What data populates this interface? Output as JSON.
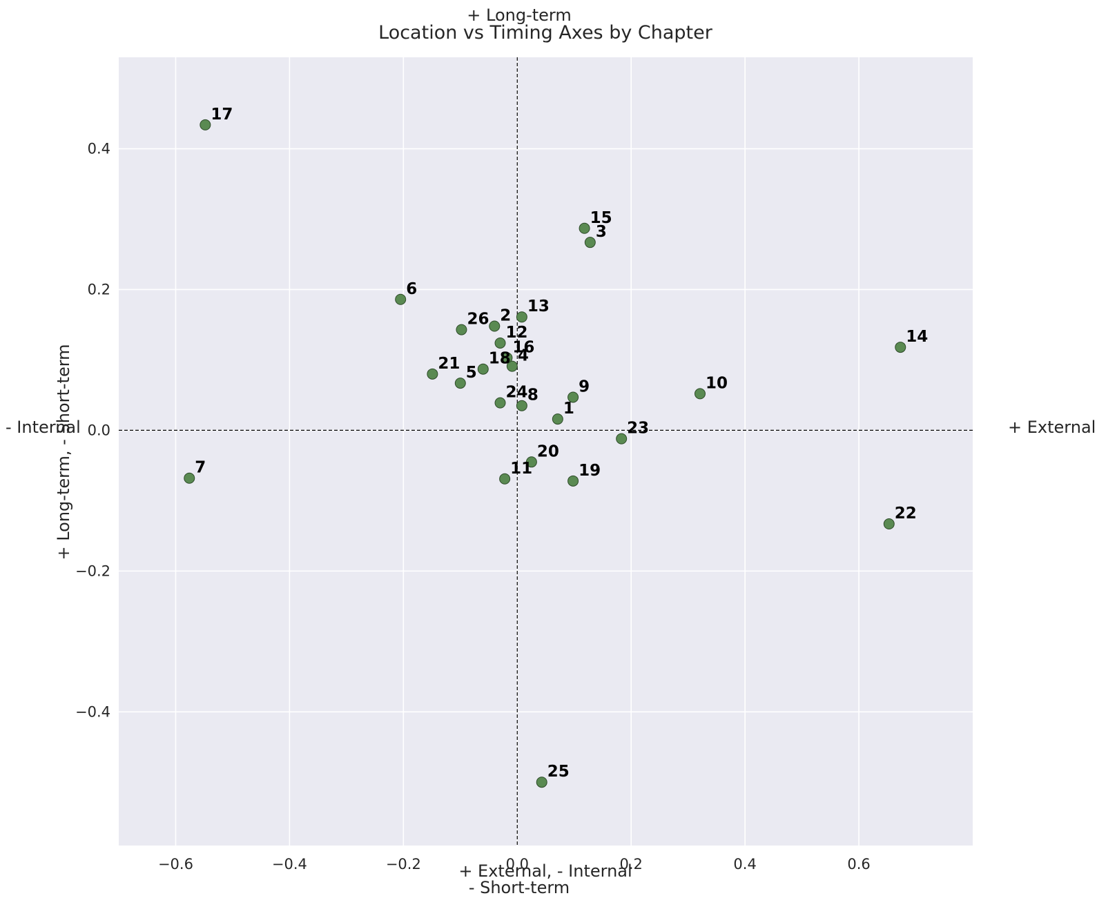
{
  "chart_data": {
    "type": "scatter",
    "title": "Location vs Timing Axes by Chapter",
    "xlabel": "+ External, - Internal",
    "ylabel": "+ Long-term, - Short-term",
    "xlim": [
      -0.7,
      0.8
    ],
    "ylim": [
      -0.59,
      0.53
    ],
    "x_ticks": [
      -0.6,
      -0.4,
      -0.2,
      0.0,
      0.2,
      0.4,
      0.6
    ],
    "y_ticks": [
      -0.4,
      -0.2,
      0.0,
      0.2,
      0.4
    ],
    "x_tick_labels": [
      "−0.6",
      "−0.4",
      "−0.2",
      "0.0",
      "0.2",
      "0.4",
      "0.6"
    ],
    "y_tick_labels": [
      "−0.4",
      "−0.2",
      "0.0",
      "0.2",
      "0.4"
    ],
    "grid": true,
    "quadrant_labels": {
      "top": "+ Long-term",
      "bottom": "- Short-term",
      "left": "- Internal",
      "right": "+ External"
    },
    "colors": {
      "point_fill": "#5a8a52",
      "point_edge": "#2d4a29",
      "plot_bg": "#eaeaf2",
      "grid": "#ffffff"
    },
    "points": [
      {
        "label": "1",
        "x": 0.071,
        "y": 0.016
      },
      {
        "label": "2",
        "x": -0.04,
        "y": 0.148
      },
      {
        "label": "3",
        "x": 0.128,
        "y": 0.267
      },
      {
        "label": "4",
        "x": -0.009,
        "y": 0.091
      },
      {
        "label": "5",
        "x": -0.1,
        "y": 0.067
      },
      {
        "label": "6",
        "x": -0.205,
        "y": 0.186
      },
      {
        "label": "7",
        "x": -0.576,
        "y": -0.068
      },
      {
        "label": "8",
        "x": 0.008,
        "y": 0.035
      },
      {
        "label": "9",
        "x": 0.098,
        "y": 0.047
      },
      {
        "label": "10",
        "x": 0.321,
        "y": 0.052
      },
      {
        "label": "11",
        "x": -0.022,
        "y": -0.069
      },
      {
        "label": "12",
        "x": -0.03,
        "y": 0.124
      },
      {
        "label": "13",
        "x": 0.008,
        "y": 0.161
      },
      {
        "label": "14",
        "x": 0.673,
        "y": 0.118
      },
      {
        "label": "15",
        "x": 0.118,
        "y": 0.287
      },
      {
        "label": "16",
        "x": -0.018,
        "y": 0.103
      },
      {
        "label": "17",
        "x": -0.548,
        "y": 0.434
      },
      {
        "label": "18",
        "x": -0.06,
        "y": 0.087
      },
      {
        "label": "19",
        "x": 0.098,
        "y": -0.072
      },
      {
        "label": "20",
        "x": 0.025,
        "y": -0.045
      },
      {
        "label": "21",
        "x": -0.149,
        "y": 0.08
      },
      {
        "label": "22",
        "x": 0.653,
        "y": -0.133
      },
      {
        "label": "23",
        "x": 0.183,
        "y": -0.012
      },
      {
        "label": "24",
        "x": -0.03,
        "y": 0.039
      },
      {
        "label": "25",
        "x": 0.043,
        "y": -0.5
      },
      {
        "label": "26",
        "x": -0.098,
        "y": 0.143
      }
    ]
  }
}
